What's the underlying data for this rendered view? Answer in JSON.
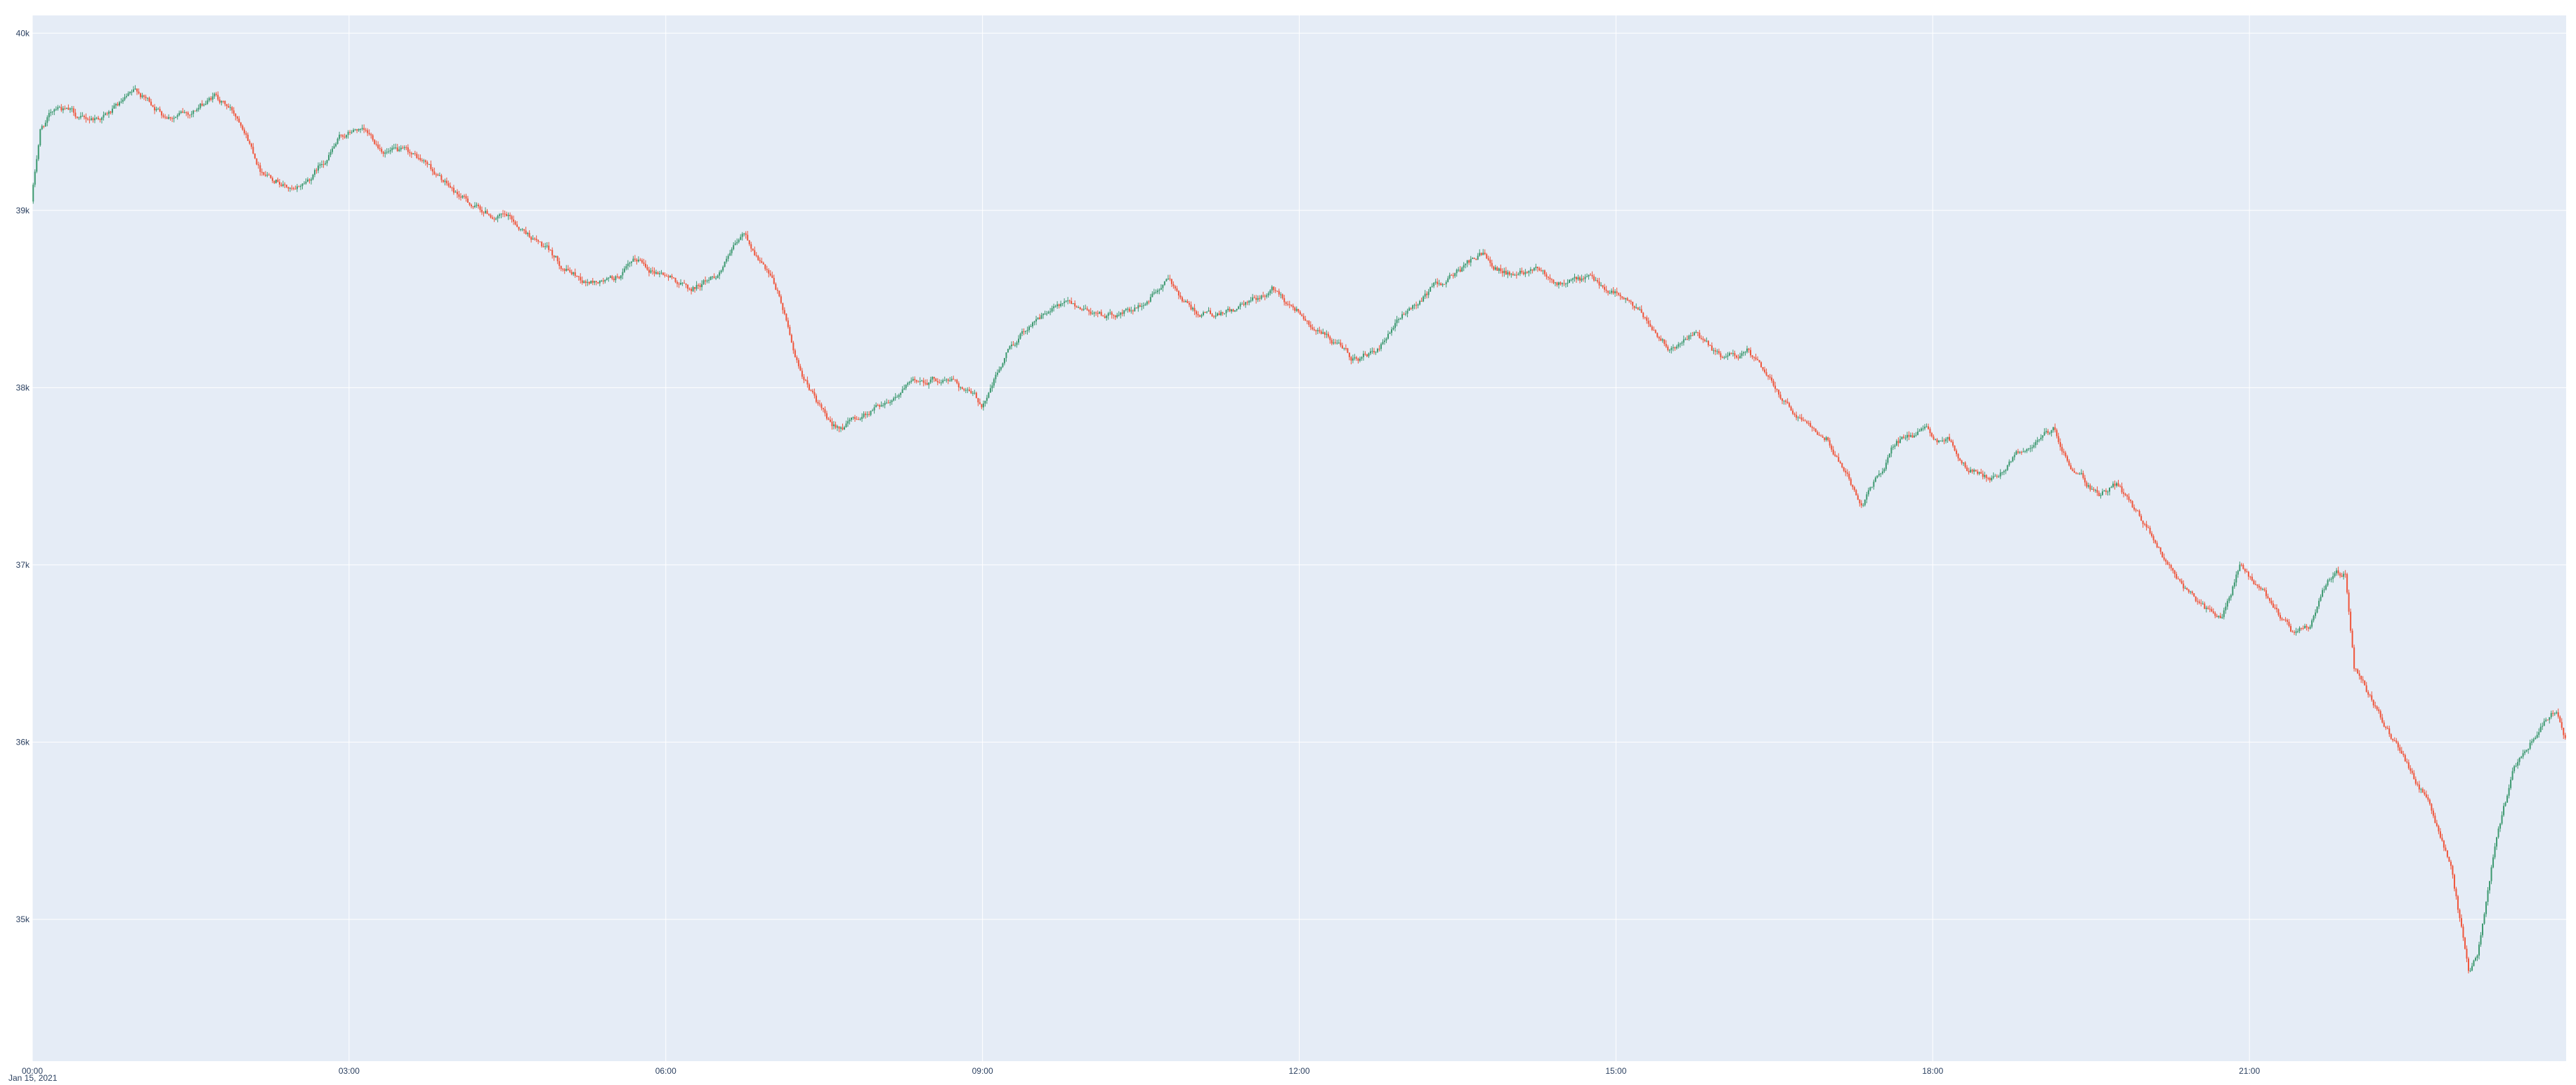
{
  "chart_data": {
    "type": "candlestick",
    "x_axis": {
      "type": "time",
      "date_label": "Jan 15, 2021",
      "range": [
        "2021-01-15 00:00",
        "2021-01-16 00:00"
      ],
      "tick_labels": [
        "00:00",
        "03:00",
        "06:00",
        "09:00",
        "12:00",
        "15:00",
        "18:00",
        "21:00"
      ]
    },
    "y_axis": {
      "range": [
        34200,
        40100
      ],
      "tick_values": [
        35000,
        36000,
        37000,
        38000,
        39000,
        40000
      ],
      "tick_labels": [
        "35k",
        "36k",
        "37k",
        "38k",
        "39k",
        "40k"
      ]
    },
    "grid": true,
    "legend": "none",
    "colors": {
      "background": "#ffffff",
      "plot_background": "#e5ecf6",
      "grid": "#ffffff",
      "increasing": "#3d9970",
      "decreasing": "#ef553b",
      "tick_text": "#2a3f5f"
    },
    "series": {
      "interval": "1min",
      "path_points": [
        [
          "00:00",
          39050
        ],
        [
          "00:05",
          39450
        ],
        [
          "00:15",
          39600
        ],
        [
          "00:30",
          39500
        ],
        [
          "00:45",
          39550
        ],
        [
          "01:00",
          39650
        ],
        [
          "01:15",
          39550
        ],
        [
          "01:30",
          39550
        ],
        [
          "01:45",
          39650
        ],
        [
          "02:00",
          39500
        ],
        [
          "02:10",
          39250
        ],
        [
          "02:20",
          39200
        ],
        [
          "02:30",
          39100
        ],
        [
          "02:40",
          39200
        ],
        [
          "02:55",
          39400
        ],
        [
          "03:05",
          39450
        ],
        [
          "03:20",
          39350
        ],
        [
          "03:35",
          39300
        ],
        [
          "03:45",
          39250
        ],
        [
          "04:00",
          39100
        ],
        [
          "04:15",
          39000
        ],
        [
          "04:30",
          38950
        ],
        [
          "04:45",
          38850
        ],
        [
          "05:00",
          38700
        ],
        [
          "05:15",
          38600
        ],
        [
          "05:30",
          38600
        ],
        [
          "05:45",
          38700
        ],
        [
          "06:00",
          38650
        ],
        [
          "06:15",
          38550
        ],
        [
          "06:30",
          38650
        ],
        [
          "06:45",
          38850
        ],
        [
          "06:55",
          38700
        ],
        [
          "07:05",
          38500
        ],
        [
          "07:15",
          38150
        ],
        [
          "07:25",
          37950
        ],
        [
          "07:35",
          37750
        ],
        [
          "07:45",
          37800
        ],
        [
          "08:00",
          37900
        ],
        [
          "08:15",
          38000
        ],
        [
          "08:30",
          38050
        ],
        [
          "08:45",
          38050
        ],
        [
          "09:00",
          37900
        ],
        [
          "09:15",
          38200
        ],
        [
          "09:30",
          38400
        ],
        [
          "09:45",
          38450
        ],
        [
          "10:00",
          38450
        ],
        [
          "10:15",
          38400
        ],
        [
          "10:30",
          38450
        ],
        [
          "10:45",
          38600
        ],
        [
          "11:00",
          38450
        ],
        [
          "11:15",
          38400
        ],
        [
          "11:30",
          38450
        ],
        [
          "11:45",
          38550
        ],
        [
          "12:00",
          38450
        ],
        [
          "12:15",
          38300
        ],
        [
          "12:30",
          38150
        ],
        [
          "12:45",
          38200
        ],
        [
          "13:00",
          38400
        ],
        [
          "13:15",
          38550
        ],
        [
          "13:30",
          38650
        ],
        [
          "13:45",
          38750
        ],
        [
          "14:00",
          38650
        ],
        [
          "14:15",
          38700
        ],
        [
          "14:30",
          38600
        ],
        [
          "14:45",
          38600
        ],
        [
          "15:00",
          38550
        ],
        [
          "15:15",
          38400
        ],
        [
          "15:30",
          38250
        ],
        [
          "15:45",
          38300
        ],
        [
          "16:00",
          38150
        ],
        [
          "16:15",
          38200
        ],
        [
          "16:30",
          38000
        ],
        [
          "16:45",
          37850
        ],
        [
          "17:00",
          37750
        ],
        [
          "17:10",
          37550
        ],
        [
          "17:20",
          37350
        ],
        [
          "17:30",
          37500
        ],
        [
          "17:40",
          37700
        ],
        [
          "17:55",
          37750
        ],
        [
          "18:10",
          37700
        ],
        [
          "18:20",
          37550
        ],
        [
          "18:35",
          37500
        ],
        [
          "18:50",
          37650
        ],
        [
          "19:00",
          37700
        ],
        [
          "19:10",
          37750
        ],
        [
          "19:20",
          37550
        ],
        [
          "19:35",
          37400
        ],
        [
          "19:45",
          37450
        ],
        [
          "19:55",
          37300
        ],
        [
          "20:05",
          37150
        ],
        [
          "20:15",
          37000
        ],
        [
          "20:25",
          36850
        ],
        [
          "20:35",
          36750
        ],
        [
          "20:45",
          36700
        ],
        [
          "20:55",
          37000
        ],
        [
          "21:05",
          36850
        ],
        [
          "21:15",
          36750
        ],
        [
          "21:25",
          36600
        ],
        [
          "21:35",
          36650
        ],
        [
          "21:45",
          36900
        ],
        [
          "21:55",
          36950
        ],
        [
          "22:00",
          36400
        ],
        [
          "22:20",
          36050
        ],
        [
          "22:40",
          35700
        ],
        [
          "22:55",
          35300
        ],
        [
          "23:05",
          34700
        ],
        [
          "23:10",
          34800
        ],
        [
          "23:20",
          35400
        ],
        [
          "23:30",
          35800
        ],
        [
          "23:40",
          36000
        ],
        [
          "23:55",
          36200
        ],
        [
          "24:00",
          36050
        ]
      ]
    }
  }
}
